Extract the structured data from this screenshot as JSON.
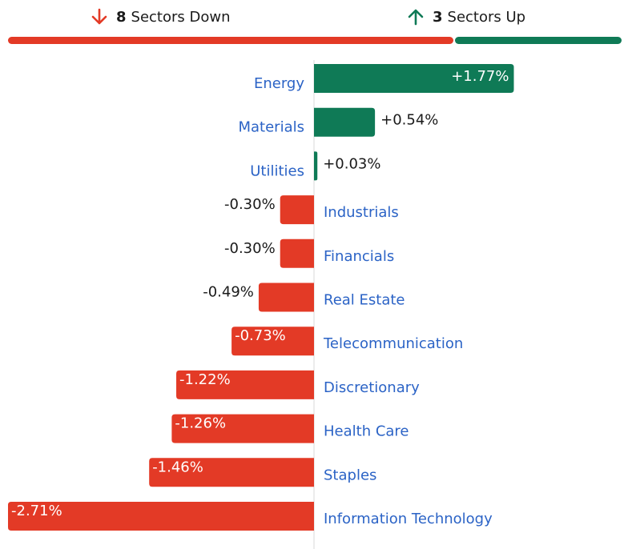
{
  "header": {
    "down_count": "8",
    "down_label": "Sectors Down",
    "up_count": "3",
    "up_label": "Sectors Up",
    "down_icon": "arrow-down-icon",
    "up_icon": "arrow-up-icon"
  },
  "colors": {
    "positive": "#0f7a56",
    "negative": "#e33a26",
    "label": "#2b63c6",
    "value_text": "#1a1a1a",
    "axis_line": "#d8d8d8"
  },
  "chart_data": {
    "type": "bar",
    "orientation": "horizontal",
    "title": "",
    "xlabel": "",
    "ylabel": "",
    "categories": [
      "Energy",
      "Materials",
      "Utilities",
      "Industrials",
      "Financials",
      "Real Estate",
      "Telecommunication",
      "Discretionary",
      "Health Care",
      "Staples",
      "Information Technology"
    ],
    "values": [
      1.77,
      0.54,
      0.03,
      -0.3,
      -0.3,
      -0.49,
      -0.73,
      -1.22,
      -1.26,
      -1.46,
      -2.71
    ],
    "value_labels": [
      "+1.77%",
      "+0.54%",
      "+0.03%",
      "-0.30%",
      "-0.30%",
      "-0.49%",
      "-0.73%",
      "-1.22%",
      "-1.26%",
      "-1.46%",
      "-2.71%"
    ],
    "xlim": [
      -2.71,
      1.77
    ],
    "grid": false,
    "legend": "none"
  }
}
